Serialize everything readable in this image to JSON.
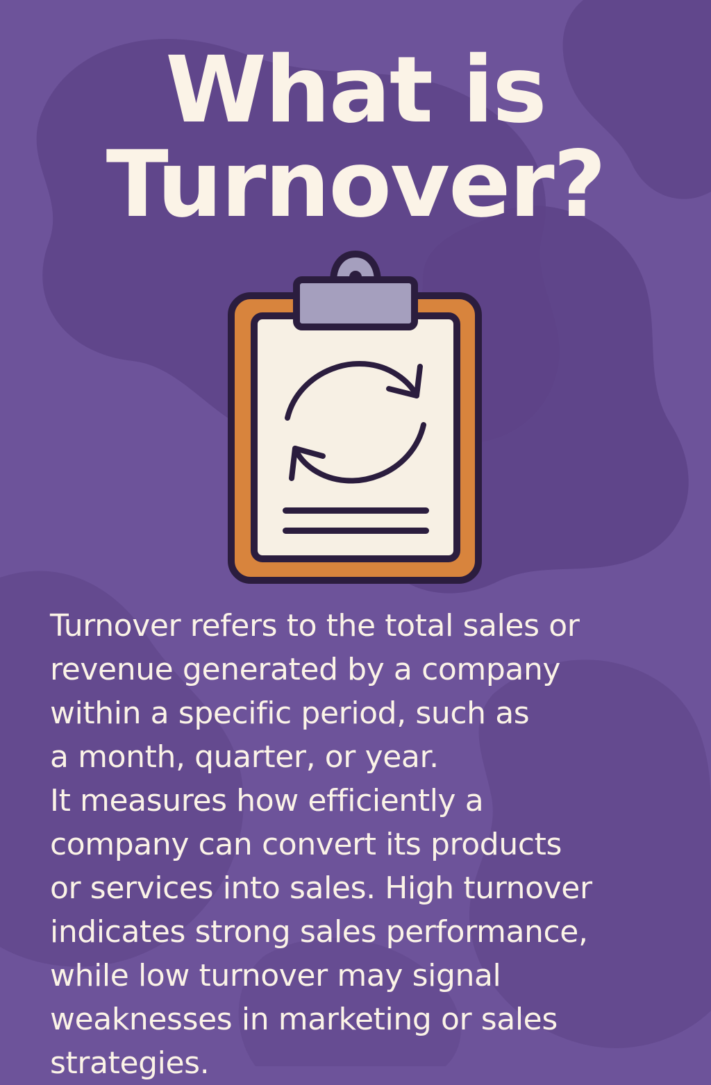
{
  "colors": {
    "background": "#6d539a",
    "background_blob": "#5d4387",
    "text": "#fbf3e7",
    "clipboard_board": "#d8843d",
    "clipboard_paper": "#f7f0e4",
    "clipboard_clip": "#a59fbe",
    "outline": "#2b1d3e"
  },
  "title": {
    "lines": [
      "What is",
      "Turnover?"
    ]
  },
  "illustration": {
    "icon": "clipboard-icon",
    "symbol_icon": "refresh-arrows-icon"
  },
  "body": {
    "lines": [
      "Turnover refers to the total sales or",
      "revenue generated by a company",
      "within a specific period, such as",
      "a month, quarter, or year.",
      "It measures how efficiently a",
      "company can convert its products",
      "or services into sales. High turnover",
      "indicates strong sales performance,",
      "while low turnover may signal",
      "weaknesses in marketing or sales",
      "strategies."
    ]
  }
}
